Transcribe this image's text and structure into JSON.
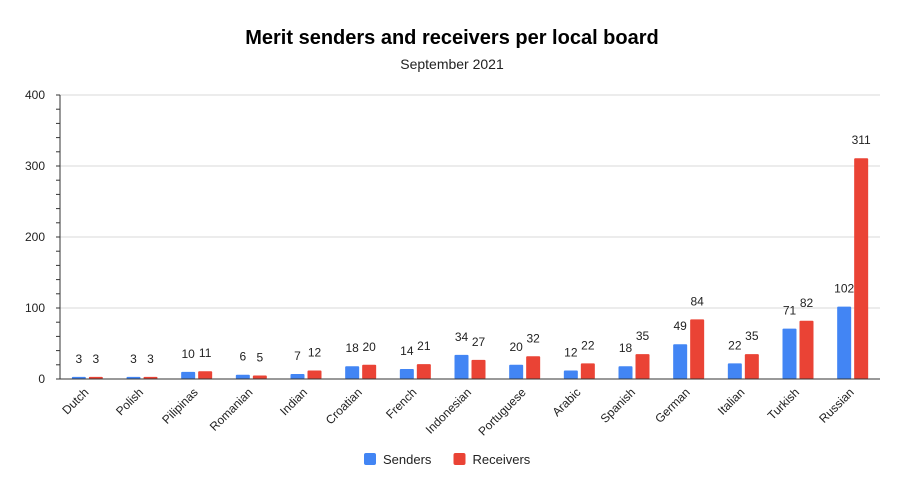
{
  "chart_data": {
    "type": "bar",
    "title": "Merit senders and receivers per local board",
    "subtitle": "September 2021",
    "categories": [
      "Dutch",
      "Polish",
      "Pilipinas",
      "Romanian",
      "Indian",
      "Croatian",
      "French",
      "Indonesian",
      "Portuguese",
      "Arabic",
      "Spanish",
      "German",
      "Italian",
      "Turkish",
      "Russian"
    ],
    "series": [
      {
        "name": "Senders",
        "color": "#4285f4",
        "values": [
          3,
          3,
          10,
          6,
          7,
          18,
          14,
          34,
          20,
          12,
          18,
          49,
          22,
          71,
          102
        ]
      },
      {
        "name": "Receivers",
        "color": "#ea4335",
        "values": [
          3,
          3,
          11,
          5,
          12,
          20,
          21,
          27,
          32,
          22,
          35,
          84,
          35,
          82,
          311
        ]
      }
    ],
    "ylim": [
      0,
      400
    ],
    "yticks": [
      0,
      100,
      200,
      300,
      400
    ],
    "grid": true,
    "legend": "bottom"
  }
}
